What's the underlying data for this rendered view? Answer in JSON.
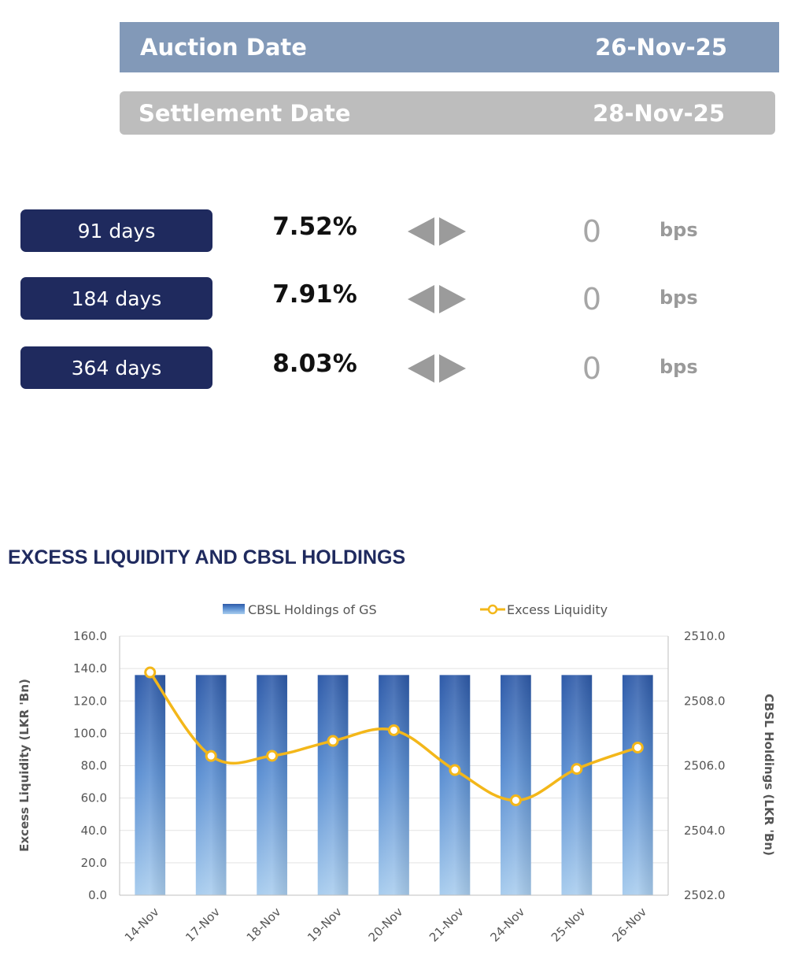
{
  "auction": {
    "label": "Auction Date",
    "value": "26-Nov-25"
  },
  "settlement": {
    "label": "Settlement Date",
    "value": "28-Nov-25"
  },
  "rates": [
    {
      "tenor": "91 days",
      "rate": "7.52%",
      "change": "0",
      "unit": "bps"
    },
    {
      "tenor": "184 days",
      "rate": "7.91%",
      "change": "0",
      "unit": "bps"
    },
    {
      "tenor": "364 days",
      "rate": "8.03%",
      "change": "0",
      "unit": "bps"
    }
  ],
  "colors": {
    "bar_dark": "#2e5aa8",
    "bar_light": "#a9cdee",
    "line": "#f3b71a",
    "pill": "#1f2a5e"
  },
  "chart_data": {
    "type": "bar",
    "title": "EXCESS LIQUIDITY AND CBSL HOLDINGS",
    "categories": [
      "14-Nov",
      "17-Nov",
      "18-Nov",
      "19-Nov",
      "20-Nov",
      "21-Nov",
      "24-Nov",
      "25-Nov",
      "26-Nov"
    ],
    "series": [
      {
        "name": "CBSL Holdings of GS",
        "type": "bar",
        "axis": "right",
        "values": [
          2508.8,
          2508.8,
          2508.8,
          2508.8,
          2508.8,
          2508.8,
          2508.8,
          2508.8,
          2508.8
        ]
      },
      {
        "name": "Excess Liquidity",
        "type": "line",
        "axis": "left",
        "values": [
          137.6,
          86.0,
          86.1,
          95.3,
          101.9,
          77.3,
          58.6,
          78.0,
          91.2
        ]
      }
    ],
    "ylabel": "Excess Liquidity (LKR 'Bn)",
    "y2label": "CBSL Holdings (LKR 'Bn)",
    "ylim": [
      0,
      160
    ],
    "y2lim": [
      2502,
      2510
    ],
    "yticks": [
      "0.0",
      "20.0",
      "40.0",
      "60.0",
      "80.0",
      "100.0",
      "120.0",
      "140.0",
      "160.0"
    ],
    "y2ticks": [
      "2502.0",
      "2504.0",
      "2506.0",
      "2508.0",
      "2510.0"
    ],
    "grid": true,
    "legend": "top"
  }
}
